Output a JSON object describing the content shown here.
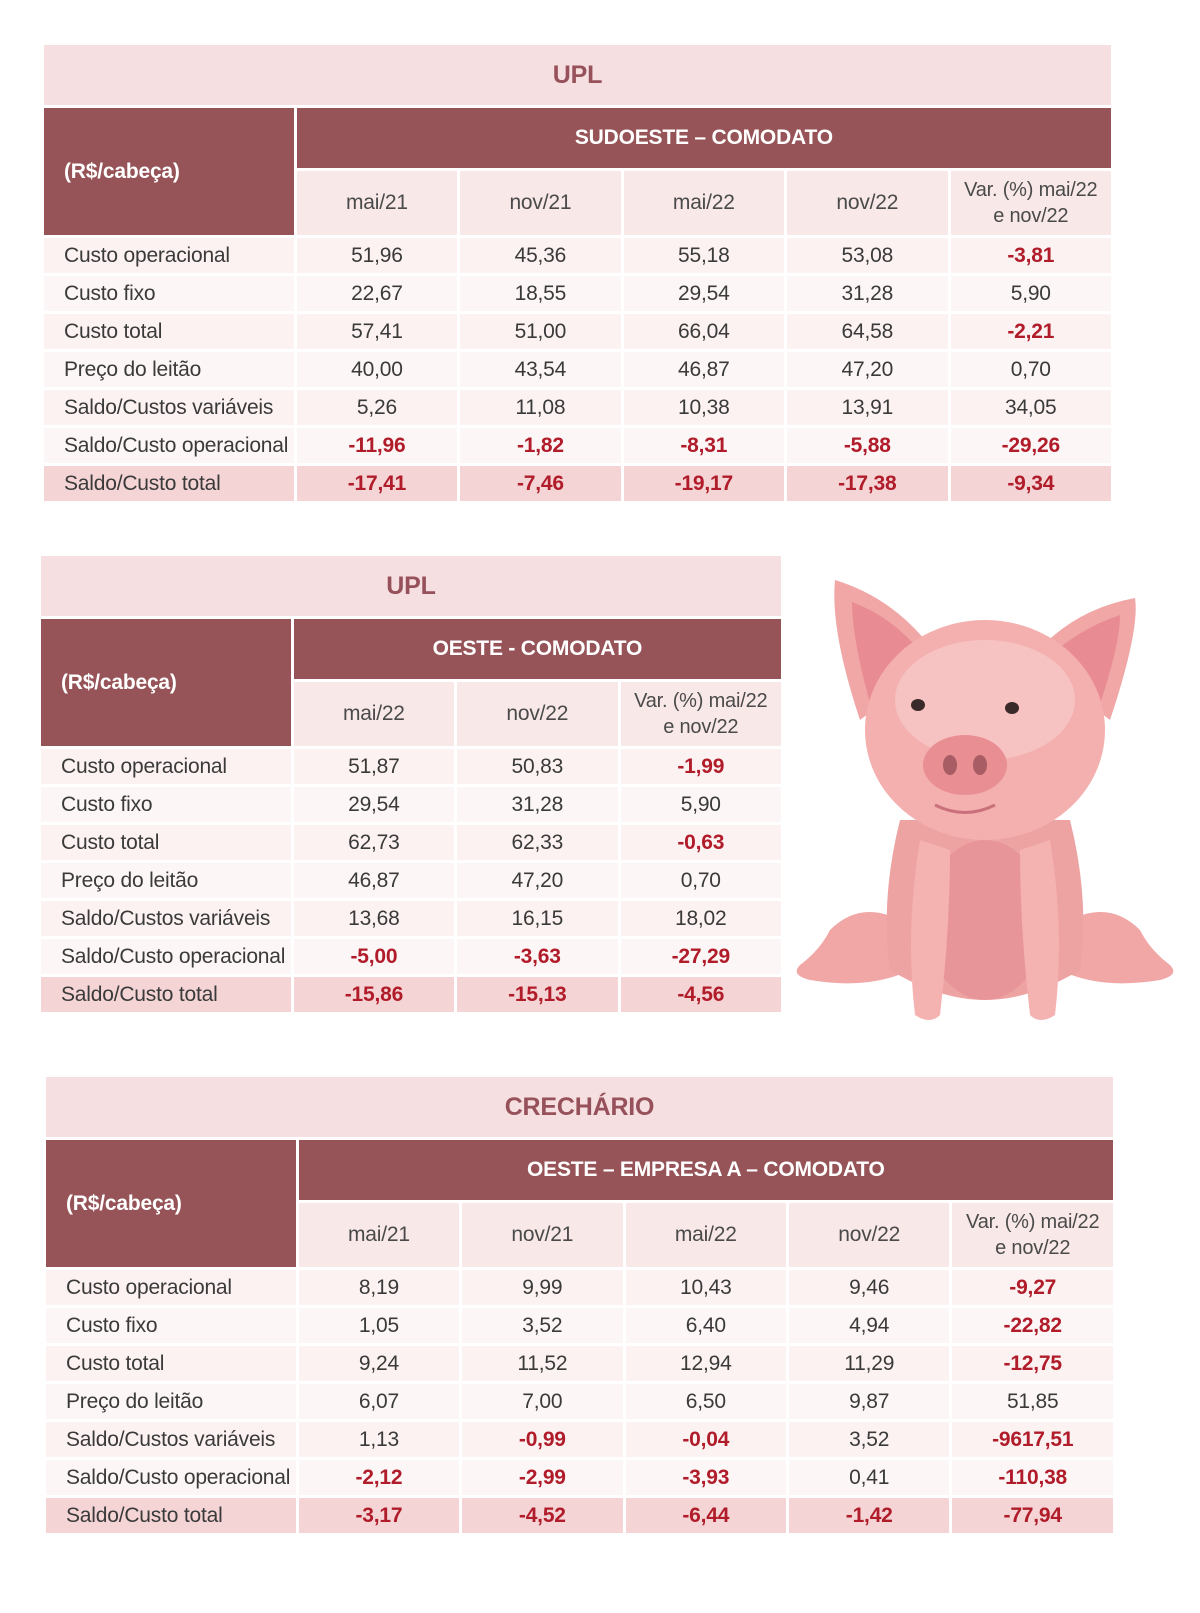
{
  "tables": [
    {
      "title": "UPL",
      "unit_label": "(R$/cabeça)",
      "region": "SUDOESTE – COMODATO",
      "periods": [
        "mai/21",
        "nov/21",
        "mai/22",
        "nov/22"
      ],
      "var_header_line1": "Var. (%) mai/22",
      "var_header_line2": "e nov/22",
      "rows": [
        {
          "label": "Custo operacional",
          "values": [
            "51,96",
            "45,36",
            "55,18",
            "53,08"
          ],
          "var": "-3,81"
        },
        {
          "label": "Custo fixo",
          "values": [
            "22,67",
            "18,55",
            "29,54",
            "31,28"
          ],
          "var": "5,90"
        },
        {
          "label": "Custo total",
          "values": [
            "57,41",
            "51,00",
            "66,04",
            "64,58"
          ],
          "var": "-2,21"
        },
        {
          "label": "Preço do leitão",
          "values": [
            "40,00",
            "43,54",
            "46,87",
            "47,20"
          ],
          "var": "0,70"
        },
        {
          "label": "Saldo/Custos variáveis",
          "values": [
            "5,26",
            "11,08",
            "10,38",
            "13,91"
          ],
          "var": "34,05"
        },
        {
          "label": "Saldo/Custo operacional",
          "values": [
            "-11,96",
            "-1,82",
            "-8,31",
            "-5,88"
          ],
          "var": "-29,26"
        },
        {
          "label": "Saldo/Custo total",
          "values": [
            "-17,41",
            "-7,46",
            "-19,17",
            "-17,38"
          ],
          "var": "-9,34"
        }
      ]
    },
    {
      "title": "UPL",
      "unit_label": "(R$/cabeça)",
      "region": "OESTE - COMODATO",
      "periods": [
        "mai/22",
        "nov/22"
      ],
      "var_header_line1": "Var. (%) mai/22",
      "var_header_line2": "e nov/22",
      "rows": [
        {
          "label": "Custo operacional",
          "values": [
            "51,87",
            "50,83"
          ],
          "var": "-1,99"
        },
        {
          "label": "Custo fixo",
          "values": [
            "29,54",
            "31,28"
          ],
          "var": "5,90"
        },
        {
          "label": "Custo total",
          "values": [
            "62,73",
            "62,33"
          ],
          "var": "-0,63"
        },
        {
          "label": "Preço do leitão",
          "values": [
            "46,87",
            "47,20"
          ],
          "var": "0,70"
        },
        {
          "label": "Saldo/Custos variáveis",
          "values": [
            "13,68",
            "16,15"
          ],
          "var": "18,02"
        },
        {
          "label": "Saldo/Custo operacional",
          "values": [
            "-5,00",
            "-3,63"
          ],
          "var": "-27,29"
        },
        {
          "label": "Saldo/Custo total",
          "values": [
            "-15,86",
            "-15,13"
          ],
          "var": "-4,56"
        }
      ]
    },
    {
      "title": "CRECHÁRIO",
      "unit_label": "(R$/cabeça)",
      "region": "OESTE – EMPRESA A – COMODATO",
      "periods": [
        "mai/21",
        "nov/21",
        "mai/22",
        "nov/22"
      ],
      "var_header_line1": "Var. (%) mai/22",
      "var_header_line2": "e nov/22",
      "rows": [
        {
          "label": "Custo operacional",
          "values": [
            "8,19",
            "9,99",
            "10,43",
            "9,46"
          ],
          "var": "-9,27"
        },
        {
          "label": "Custo fixo",
          "values": [
            "1,05",
            "3,52",
            "6,40",
            "4,94"
          ],
          "var": "-22,82"
        },
        {
          "label": "Custo total",
          "values": [
            "9,24",
            "11,52",
            "12,94",
            "11,29"
          ],
          "var": "-12,75"
        },
        {
          "label": "Preço do leitão",
          "values": [
            "6,07",
            "7,00",
            "6,50",
            "9,87"
          ],
          "var": "51,85"
        },
        {
          "label": "Saldo/Custos variáveis",
          "values": [
            "1,13",
            "-0,99",
            "-0,04",
            "3,52"
          ],
          "var": "-9617,51"
        },
        {
          "label": "Saldo/Custo operacional",
          "values": [
            "-2,12",
            "-2,99",
            "-3,93",
            "0,41"
          ],
          "var": "-110,38"
        },
        {
          "label": "Saldo/Custo total",
          "values": [
            "-3,17",
            "-4,52",
            "-6,44",
            "-1,42"
          ],
          "var": "-77,94"
        }
      ]
    }
  ],
  "illustration": {
    "icon": "pig-illustration-icon",
    "colors": {
      "body": "#f0a7a6",
      "shade": "#e4898b",
      "light": "#f7c3c2",
      "ear_inner": "#e98b92"
    }
  }
}
